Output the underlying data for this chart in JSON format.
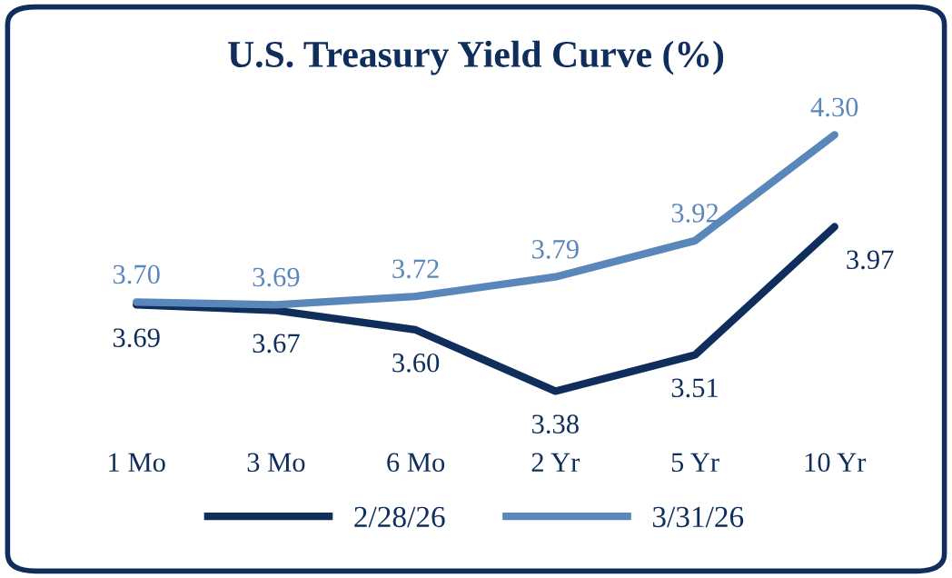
{
  "chart_data": {
    "type": "line",
    "title": "U.S. Treasury Yield Curve (%)",
    "categories": [
      "1 Mo",
      "3 Mo",
      "6 Mo",
      "2 Yr",
      "5 Yr",
      "10 Yr"
    ],
    "series": [
      {
        "name": "2/28/26",
        "color": "#0f2e5c",
        "values": [
          3.69,
          3.67,
          3.6,
          3.38,
          3.51,
          3.97
        ],
        "value_labels": [
          "3.69",
          "3.67",
          "3.60",
          "3.38",
          "3.51",
          "3.97"
        ]
      },
      {
        "name": "3/31/26",
        "color": "#5a87ba",
        "values": [
          3.7,
          3.69,
          3.72,
          3.79,
          3.92,
          4.3
        ],
        "value_labels": [
          "3.70",
          "3.69",
          "3.72",
          "3.79",
          "3.92",
          "4.30"
        ]
      }
    ],
    "legend": "bottom",
    "grid": false,
    "marker": "none",
    "line_style": "solid"
  }
}
